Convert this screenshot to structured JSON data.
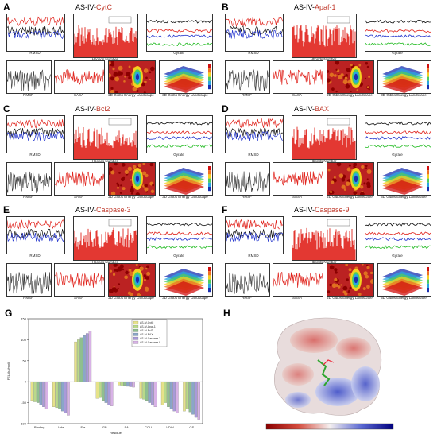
{
  "panels": [
    {
      "label": "A",
      "title_prefix": "AS-IV-",
      "title_target": "CytC"
    },
    {
      "label": "B",
      "title_prefix": "AS-IV-",
      "title_target": "Apaf-1"
    },
    {
      "label": "C",
      "title_prefix": "AS-IV-",
      "title_target": "Bcl2"
    },
    {
      "label": "D",
      "title_prefix": "AS-IV-",
      "title_target": "BAX"
    },
    {
      "label": "E",
      "title_prefix": "AS-IV-",
      "title_target": "Caspase-3"
    },
    {
      "label": "F",
      "title_prefix": "AS-IV-",
      "title_target": "Caspase-9"
    }
  ],
  "subplot_captions": {
    "rmsd": "RMSD",
    "hbonds": "Hbonds Number",
    "gyrate": "Gyrate",
    "rmsf": "RMSF",
    "sasa": "SASA",
    "fel2d": "2D Gibbs Energy Landscape",
    "fel3d": "3D Gibbs Energy Landscape"
  },
  "panel_G": {
    "label": "G"
  },
  "panel_H": {
    "label": "H"
  },
  "colors": {
    "red": "#e0231c",
    "black": "#111111",
    "blue": "#2233cc",
    "green": "#22bb22",
    "title_highlight": "#c0392b"
  },
  "chart_data": {
    "type": "bar",
    "title": "",
    "xlabel": "Residue",
    "ylabel": "FEL (kJ/mol)",
    "categories": [
      "Binding",
      "Vdw",
      "Ele",
      "GB",
      "SA",
      "COU",
      "VDW",
      "GS"
    ],
    "ylim": [
      -100,
      150
    ],
    "series": [
      {
        "name": "AS-IV-CytC",
        "color": "#e6e28a",
        "values": [
          -45,
          -60,
          95,
          -40,
          -8,
          -40,
          -55,
          -70
        ]
      },
      {
        "name": "AS-IV-Apaf-1",
        "color": "#b9d98a",
        "values": [
          -48,
          -62,
          100,
          -38,
          -10,
          -42,
          -50,
          -65
        ]
      },
      {
        "name": "AS-IV-Bcl2",
        "color": "#8fbf8f",
        "values": [
          -50,
          -65,
          105,
          -45,
          -9,
          -45,
          -60,
          -72
        ]
      },
      {
        "name": "AS-IV-BAX",
        "color": "#8aa6c9",
        "values": [
          -55,
          -70,
          110,
          -50,
          -11,
          -50,
          -65,
          -78
        ]
      },
      {
        "name": "AS-IV-Caspase-3",
        "color": "#a99ad9",
        "values": [
          -60,
          -75,
          115,
          -55,
          -12,
          -55,
          -70,
          -85
        ]
      },
      {
        "name": "AS-IV-Caspase-9",
        "color": "#d8b2e6",
        "values": [
          -65,
          -80,
          120,
          -58,
          -13,
          -60,
          -75,
          -90
        ]
      }
    ]
  }
}
